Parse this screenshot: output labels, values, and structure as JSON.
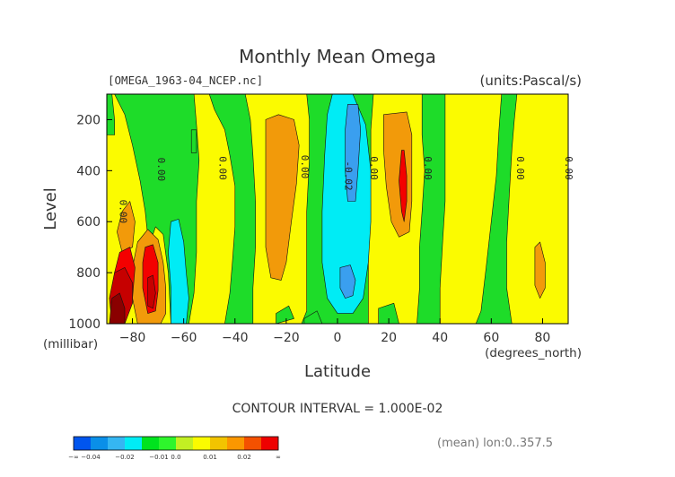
{
  "chart_data": {
    "type": "contourf",
    "title": "Monthly Mean Omega",
    "file_label": "[OMEGA_1963-04_NCEP.nc]",
    "units_label": "(units:Pascal/s)",
    "xlabel": "Latitude",
    "xunits": "(degrees_north)",
    "ylabel": "Level",
    "yunits": "(millibar)",
    "xlim": [
      -90,
      90
    ],
    "ylim": [
      1000,
      100
    ],
    "x_ticks": [
      -80,
      -60,
      -40,
      -20,
      0,
      20,
      40,
      60,
      80
    ],
    "x_tick_labels": [
      "−80",
      "−60",
      "−40",
      "−20",
      "0",
      "20",
      "40",
      "60",
      "80"
    ],
    "y_ticks": [
      200,
      400,
      600,
      800,
      1000
    ],
    "y_tick_labels": [
      "200",
      "400",
      "600",
      "800",
      "1000"
    ],
    "contour_interval_text": "CONTOUR INTERVAL = 1.000E-02",
    "footer_note": "(mean) lon:0..357.5",
    "colorbar": {
      "bounds": [
        "-∞",
        "−0.04",
        "−0.03",
        "−0.02",
        "−0.015",
        "−0.01",
        "0.0",
        "0.005",
        "0.01",
        "0.015",
        "0.02",
        "0.03",
        "∞"
      ],
      "labels": [
        "−∞",
        "−0.04",
        "−0.02",
        "−0.01",
        "0.0",
        "0.01",
        "0.02",
        "∞"
      ],
      "colors": [
        "#0055ee",
        "#0a8fe8",
        "#35b6f2",
        "#00ecf5",
        "#00e31e",
        "#2ef52c",
        "#c2ef23",
        "#fbfb00",
        "#f2c400",
        "#fb9700",
        "#f45100",
        "#ee0000"
      ]
    },
    "color_map": {
      "level_colors": {
        "-0.02": "#3a9fef",
        "-0.01": "#00ecf5",
        "0.0": "#1edc29",
        "0.01": "#fbfb00",
        "0.02": "#f29a0a",
        "0.03": "#f40000",
        "0.05": "#c60000",
        "0.07": "#8a0000"
      }
    },
    "regions": [
      {
        "level": "0.0",
        "poly": [
          [
            -90,
            100
          ],
          [
            90,
            100
          ],
          [
            90,
            1000
          ],
          [
            -90,
            1000
          ]
        ]
      },
      {
        "level": "0.01",
        "poly": [
          [
            -90,
            100
          ],
          [
            -87,
            100
          ],
          [
            -83,
            180
          ],
          [
            -80,
            300
          ],
          [
            -77,
            440
          ],
          [
            -75,
            560
          ],
          [
            -74,
            660
          ],
          [
            -73,
            780
          ],
          [
            -72,
            900
          ],
          [
            -72,
            1000
          ],
          [
            -90,
            1000
          ]
        ]
      },
      {
        "level": "0.01",
        "poly": [
          [
            -73,
            680
          ],
          [
            -71,
            620
          ],
          [
            -68,
            650
          ],
          [
            -66,
            800
          ],
          [
            -65,
            1000
          ],
          [
            -73,
            1000
          ]
        ]
      },
      {
        "level": "0.01",
        "poly": [
          [
            -56,
            100
          ],
          [
            -50,
            100
          ],
          [
            -48,
            160
          ],
          [
            -44,
            240
          ],
          [
            -42,
            340
          ],
          [
            -40,
            460
          ],
          [
            -40,
            620
          ],
          [
            -41,
            760
          ],
          [
            -42,
            880
          ],
          [
            -44,
            1000
          ],
          [
            -58,
            1000
          ],
          [
            -56,
            880
          ],
          [
            -55,
            720
          ],
          [
            -55,
            520
          ],
          [
            -54,
            360
          ],
          [
            -55,
            220
          ]
        ]
      },
      {
        "level": "0.01",
        "poly": [
          [
            -36,
            100
          ],
          [
            -12,
            100
          ],
          [
            -11,
            200
          ],
          [
            -11,
            360
          ],
          [
            -12,
            560
          ],
          [
            -12,
            760
          ],
          [
            -12,
            950
          ],
          [
            -14,
            1000
          ],
          [
            -33,
            1000
          ],
          [
            -33,
            860
          ],
          [
            -32,
            700
          ],
          [
            -32,
            520
          ],
          [
            -33,
            340
          ],
          [
            -34,
            200
          ]
        ]
      },
      {
        "level": "0.01",
        "poly": [
          [
            14,
            100
          ],
          [
            33,
            100
          ],
          [
            33,
            260
          ],
          [
            34,
            400
          ],
          [
            33,
            560
          ],
          [
            32,
            700
          ],
          [
            32,
            860
          ],
          [
            31,
            1000
          ],
          [
            12,
            1000
          ],
          [
            12,
            880
          ],
          [
            12,
            700
          ],
          [
            12,
            540
          ],
          [
            13,
            380
          ],
          [
            13,
            240
          ]
        ]
      },
      {
        "level": "0.01",
        "poly": [
          [
            42,
            100
          ],
          [
            64,
            100
          ],
          [
            63,
            240
          ],
          [
            62,
            420
          ],
          [
            60,
            600
          ],
          [
            58,
            780
          ],
          [
            56,
            950
          ],
          [
            54,
            1000
          ],
          [
            40,
            1000
          ],
          [
            40,
            860
          ],
          [
            41,
            680
          ],
          [
            42,
            520
          ],
          [
            42,
            380
          ],
          [
            42,
            220
          ]
        ]
      },
      {
        "level": "0.01",
        "poly": [
          [
            70,
            100
          ],
          [
            90,
            100
          ],
          [
            90,
            1000
          ],
          [
            68,
            1000
          ],
          [
            66,
            860
          ],
          [
            66,
            680
          ],
          [
            67,
            500
          ],
          [
            68,
            320
          ],
          [
            69,
            200
          ]
        ]
      },
      {
        "level": "0.02",
        "poly": [
          [
            -84,
            560
          ],
          [
            -81,
            520
          ],
          [
            -79,
            600
          ],
          [
            -80,
            700
          ],
          [
            -84,
            720
          ],
          [
            -86,
            640
          ]
        ]
      },
      {
        "level": "0.02",
        "poly": [
          [
            -78,
            680
          ],
          [
            -74,
            630
          ],
          [
            -70,
            670
          ],
          [
            -68,
            760
          ],
          [
            -67,
            860
          ],
          [
            -67,
            960
          ],
          [
            -69,
            1000
          ],
          [
            -78,
            1000
          ],
          [
            -80,
            900
          ],
          [
            -80,
            780
          ]
        ]
      },
      {
        "level": "0.02",
        "poly": [
          [
            -28,
            200
          ],
          [
            -23,
            180
          ],
          [
            -17,
            200
          ],
          [
            -15,
            300
          ],
          [
            -16,
            450
          ],
          [
            -18,
            600
          ],
          [
            -20,
            760
          ],
          [
            -22,
            830
          ],
          [
            -26,
            820
          ],
          [
            -28,
            700
          ],
          [
            -28,
            540
          ],
          [
            -28,
            360
          ]
        ]
      },
      {
        "level": "0.02",
        "poly": [
          [
            18,
            180
          ],
          [
            27,
            170
          ],
          [
            29,
            260
          ],
          [
            29,
            400
          ],
          [
            29,
            520
          ],
          [
            28,
            640
          ],
          [
            24,
            660
          ],
          [
            21,
            600
          ],
          [
            19,
            460
          ],
          [
            18,
            320
          ]
        ]
      },
      {
        "level": "0.02",
        "poly": [
          [
            77,
            700
          ],
          [
            79,
            680
          ],
          [
            81,
            760
          ],
          [
            81,
            860
          ],
          [
            79,
            900
          ],
          [
            77,
            850
          ]
        ]
      },
      {
        "level": "0.03",
        "poly": [
          [
            -85,
            720
          ],
          [
            -81,
            700
          ],
          [
            -79,
            780
          ],
          [
            -80,
            900
          ],
          [
            -82,
            960
          ],
          [
            -86,
            900
          ],
          [
            -87,
            800
          ]
        ]
      },
      {
        "level": "0.03",
        "poly": [
          [
            -75,
            700
          ],
          [
            -72,
            690
          ],
          [
            -70,
            760
          ],
          [
            -70,
            870
          ],
          [
            -71,
            950
          ],
          [
            -74,
            960
          ],
          [
            -76,
            860
          ],
          [
            -76,
            760
          ]
        ]
      },
      {
        "level": "0.03",
        "poly": [
          [
            25,
            320
          ],
          [
            26,
            320
          ],
          [
            27,
            420
          ],
          [
            27,
            520
          ],
          [
            26,
            600
          ],
          [
            25,
            560
          ],
          [
            24,
            440
          ]
        ]
      },
      {
        "level": "0.05",
        "poly": [
          [
            -87,
            800
          ],
          [
            -83,
            780
          ],
          [
            -80,
            840
          ],
          [
            -80,
            920
          ],
          [
            -83,
            1000
          ],
          [
            -88,
            1000
          ],
          [
            -89,
            900
          ]
        ]
      },
      {
        "level": "0.05",
        "poly": [
          [
            -74,
            820
          ],
          [
            -72,
            810
          ],
          [
            -71,
            880
          ],
          [
            -72,
            940
          ],
          [
            -74,
            930
          ]
        ]
      },
      {
        "level": "0.07",
        "poly": [
          [
            -88,
            900
          ],
          [
            -85,
            880
          ],
          [
            -83,
            940
          ],
          [
            -83,
            1000
          ],
          [
            -89,
            1000
          ]
        ]
      },
      {
        "level": "-0.01",
        "poly": [
          [
            -2,
            100
          ],
          [
            6,
            100
          ],
          [
            11,
            220
          ],
          [
            13,
            400
          ],
          [
            13,
            600
          ],
          [
            12,
            760
          ],
          [
            10,
            900
          ],
          [
            6,
            960
          ],
          [
            0,
            960
          ],
          [
            -4,
            900
          ],
          [
            -6,
            760
          ],
          [
            -6,
            560
          ],
          [
            -5,
            340
          ],
          [
            -4,
            180
          ]
        ]
      },
      {
        "level": "-0.01",
        "poly": [
          [
            -65,
            600
          ],
          [
            -62,
            590
          ],
          [
            -60,
            680
          ],
          [
            -59,
            800
          ],
          [
            -58,
            900
          ],
          [
            -59,
            1000
          ],
          [
            -65,
            1000
          ],
          [
            -65,
            860
          ],
          [
            -66,
            720
          ]
        ]
      },
      {
        "level": "-0.02",
        "poly": [
          [
            4,
            140
          ],
          [
            8,
            140
          ],
          [
            9,
            240
          ],
          [
            8,
            400
          ],
          [
            7,
            520
          ],
          [
            4,
            520
          ],
          [
            3,
            400
          ],
          [
            3,
            240
          ]
        ]
      },
      {
        "level": "-0.02",
        "poly": [
          [
            1,
            780
          ],
          [
            5,
            770
          ],
          [
            7,
            830
          ],
          [
            6,
            890
          ],
          [
            3,
            900
          ],
          [
            1,
            860
          ]
        ]
      },
      {
        "level": "0.0",
        "poly": [
          [
            -57,
            240
          ],
          [
            -55,
            240
          ],
          [
            -55,
            330
          ],
          [
            -57,
            330
          ]
        ]
      },
      {
        "level": "0.0",
        "poly": [
          [
            -24,
            960
          ],
          [
            -19,
            930
          ],
          [
            -17,
            980
          ],
          [
            -24,
            1000
          ]
        ]
      },
      {
        "level": "0.0",
        "poly": [
          [
            -13,
            980
          ],
          [
            -8,
            950
          ],
          [
            -6,
            1000
          ],
          [
            -13,
            1000
          ]
        ]
      },
      {
        "level": "0.0",
        "poly": [
          [
            16,
            940
          ],
          [
            22,
            920
          ],
          [
            24,
            1000
          ],
          [
            16,
            1000
          ]
        ]
      },
      {
        "level": "0.0",
        "poly": [
          [
            -90,
            100
          ],
          [
            -88,
            100
          ],
          [
            -87,
            200
          ],
          [
            -87,
            260
          ],
          [
            -90,
            260
          ]
        ]
      }
    ],
    "contour_labels": [
      {
        "text": "0.00",
        "x": -85,
        "y": 560
      },
      {
        "text": "0.00",
        "x": -70,
        "y": 395
      },
      {
        "text": "0.00",
        "x": -46,
        "y": 390
      },
      {
        "text": "0.00",
        "x": -14,
        "y": 385
      },
      {
        "text": "0.00",
        "x": 13,
        "y": 390
      },
      {
        "text": "0.00",
        "x": 34,
        "y": 390
      },
      {
        "text": "0.00",
        "x": 70,
        "y": 390
      },
      {
        "text": "0.00",
        "x": 89,
        "y": 390
      },
      {
        "text": "-0.02",
        "x": 3,
        "y": 420
      }
    ]
  }
}
